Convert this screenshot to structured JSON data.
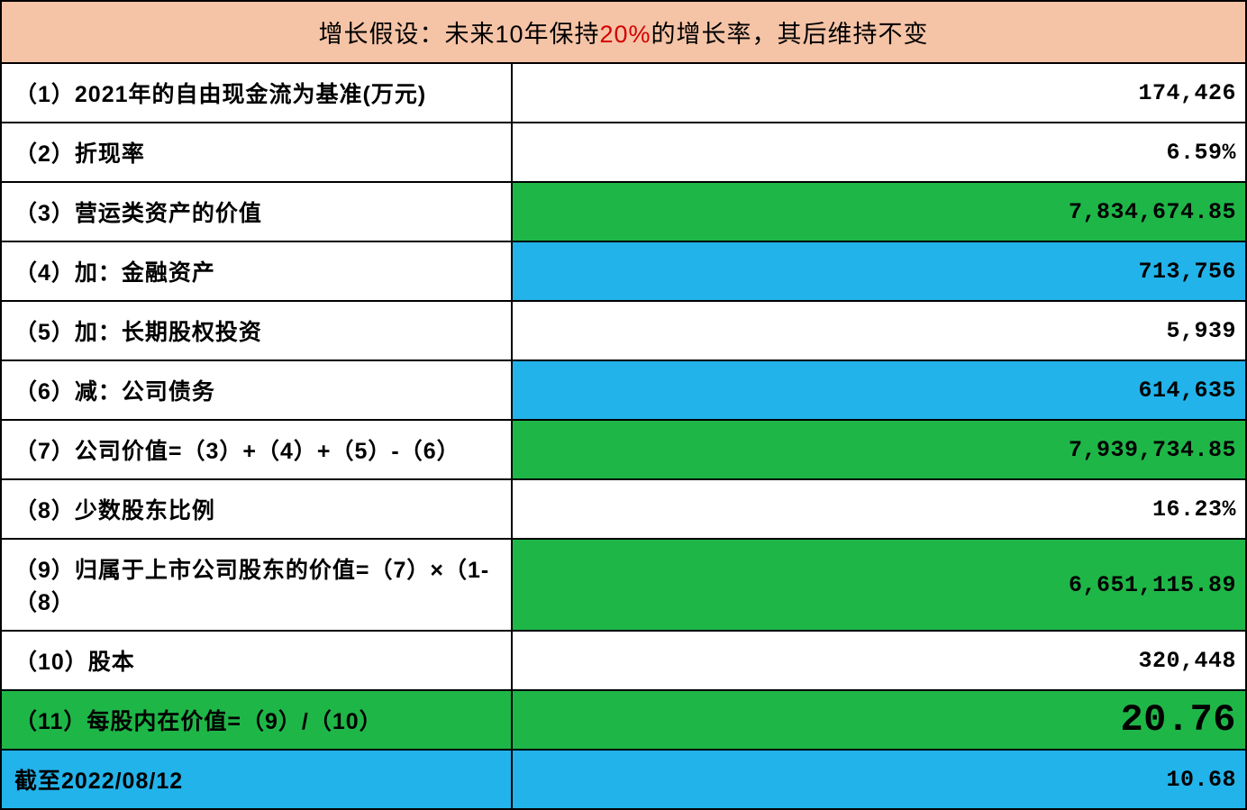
{
  "header": {
    "prefix": "增长假设：未来10年保持",
    "highlight": "20%",
    "suffix": "的增长率，其后维持不变"
  },
  "colors": {
    "header_bg": "#f5c3a6",
    "green": "#1fb648",
    "blue": "#22b3ea",
    "white": "#ffffff",
    "highlight_text": "#d40000",
    "border": "#000000"
  },
  "rows": [
    {
      "label": "（1）2021年的自由现金流为基准(万元)",
      "value": "174,426",
      "label_bg": "white",
      "value_bg": "white"
    },
    {
      "label": "（2）折现率",
      "value": "6.59%",
      "label_bg": "white",
      "value_bg": "white"
    },
    {
      "label": "（3）营运类资产的价值",
      "value": "7,834,674.85",
      "label_bg": "white",
      "value_bg": "green"
    },
    {
      "label": "（4）加：金融资产",
      "value": "713,756",
      "label_bg": "white",
      "value_bg": "blue"
    },
    {
      "label": "（5）加：长期股权投资",
      "value": "5,939",
      "label_bg": "white",
      "value_bg": "white"
    },
    {
      "label": "（6）减：公司债务",
      "value": "614,635",
      "label_bg": "white",
      "value_bg": "blue"
    },
    {
      "label": "（7）公司价值=（3）+（4）+（5）-（6）",
      "value": "7,939,734.85",
      "label_bg": "white",
      "value_bg": "green"
    },
    {
      "label": "（8）少数股东比例",
      "value": "16.23%",
      "label_bg": "white",
      "value_bg": "white"
    },
    {
      "label": "（9）归属于上市公司股东的价值=（7）×（1-（8）",
      "value": "6,651,115.89",
      "label_bg": "white",
      "value_bg": "green"
    },
    {
      "label": "（10）股本",
      "value": "320,448",
      "label_bg": "white",
      "value_bg": "white"
    },
    {
      "label": "（11）每股内在价值=（9）/（10）",
      "value": "20.76",
      "label_bg": "green",
      "value_bg": "green",
      "big": true
    },
    {
      "label": "截至2022/08/12",
      "value": "10.68",
      "label_bg": "blue",
      "value_bg": "blue"
    }
  ]
}
